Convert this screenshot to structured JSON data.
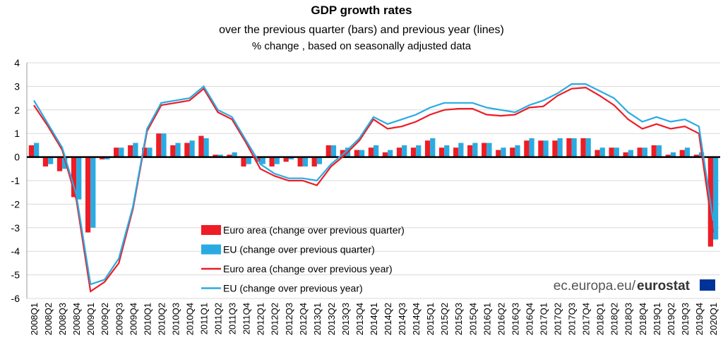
{
  "chart_data": {
    "type": "bar",
    "title": "GDP growth rates",
    "subtitle": "over the previous quarter (bars) and previous year (lines)",
    "note": "% change , based on seasonally adjusted data",
    "source": "ec.europa.eu/",
    "source_brand": "eurostat",
    "categories": [
      "2008Q1",
      "2008Q2",
      "2008Q3",
      "2008Q4",
      "2009Q1",
      "2009Q2",
      "2009Q3",
      "2009Q4",
      "2010Q1",
      "2010Q2",
      "2010Q3",
      "2010Q4",
      "2011Q1",
      "2011Q2",
      "2011Q3",
      "2011Q4",
      "2012Q1",
      "2012Q2",
      "2012Q3",
      "2012Q4",
      "2013Q1",
      "2013Q2",
      "2013Q3",
      "2013Q4",
      "2014Q1",
      "2014Q2",
      "2014Q3",
      "2014Q4",
      "2015Q1",
      "2015Q2",
      "2015Q3",
      "2015Q4",
      "2016Q1",
      "2016Q2",
      "2016Q3",
      "2016Q4",
      "2017Q1",
      "2017Q2",
      "2017Q3",
      "2017Q4",
      "2018Q1",
      "2018Q2",
      "2018Q3",
      "2018Q4",
      "2019Q1",
      "2019Q2",
      "2019Q3",
      "2019Q4",
      "2020Q1"
    ],
    "series": [
      {
        "name": "Euro area (change over previous quarter)",
        "kind": "bar",
        "color": "#ee1c25",
        "values": [
          0.5,
          -0.4,
          -0.6,
          -1.7,
          -3.2,
          -0.1,
          0.4,
          0.5,
          0.4,
          1.0,
          0.5,
          0.6,
          0.9,
          0.1,
          0.1,
          -0.4,
          -0.2,
          -0.4,
          -0.2,
          -0.4,
          -0.4,
          0.5,
          0.3,
          0.3,
          0.4,
          0.2,
          0.4,
          0.4,
          0.7,
          0.4,
          0.4,
          0.5,
          0.6,
          0.3,
          0.4,
          0.7,
          0.7,
          0.7,
          0.8,
          0.8,
          0.3,
          0.4,
          0.2,
          0.4,
          0.5,
          0.1,
          0.3,
          0.1,
          -3.8
        ]
      },
      {
        "name": "EU (change over previous quarter)",
        "kind": "bar",
        "color": "#29abe2",
        "values": [
          0.6,
          -0.3,
          -0.5,
          -1.8,
          -3.0,
          -0.1,
          0.4,
          0.6,
          0.4,
          1.0,
          0.6,
          0.7,
          0.8,
          0.1,
          0.2,
          -0.3,
          -0.3,
          -0.3,
          -0.1,
          -0.4,
          -0.3,
          0.5,
          0.4,
          0.3,
          0.5,
          0.3,
          0.5,
          0.5,
          0.8,
          0.5,
          0.6,
          0.6,
          0.6,
          0.4,
          0.5,
          0.8,
          0.7,
          0.8,
          0.8,
          0.8,
          0.4,
          0.4,
          0.3,
          0.4,
          0.5,
          0.2,
          0.4,
          0.2,
          -3.5
        ]
      },
      {
        "name": "Euro area (change over previous year)",
        "kind": "line",
        "color": "#ee1c25",
        "values": [
          2.2,
          1.3,
          0.3,
          -1.8,
          -5.7,
          -5.3,
          -4.5,
          -2.2,
          1.1,
          2.2,
          2.3,
          2.4,
          2.9,
          1.9,
          1.6,
          0.6,
          -0.5,
          -0.8,
          -1.0,
          -1.0,
          -1.2,
          -0.4,
          0.1,
          0.7,
          1.6,
          1.2,
          1.3,
          1.5,
          1.8,
          2.0,
          2.05,
          2.05,
          1.8,
          1.75,
          1.8,
          2.1,
          2.15,
          2.6,
          2.9,
          2.95,
          2.6,
          2.2,
          1.6,
          1.2,
          1.4,
          1.2,
          1.3,
          1.0,
          -3.2
        ]
      },
      {
        "name": "EU (change over previous year)",
        "kind": "line",
        "color": "#29abe2",
        "values": [
          2.4,
          1.4,
          0.4,
          -1.6,
          -5.4,
          -5.2,
          -4.3,
          -2.1,
          1.2,
          2.3,
          2.4,
          2.5,
          3.0,
          2.0,
          1.7,
          0.7,
          -0.3,
          -0.7,
          -0.9,
          -0.9,
          -1.0,
          -0.3,
          0.2,
          0.8,
          1.7,
          1.4,
          1.6,
          1.8,
          2.1,
          2.3,
          2.3,
          2.3,
          2.1,
          2.0,
          1.9,
          2.2,
          2.4,
          2.7,
          3.1,
          3.1,
          2.8,
          2.5,
          1.9,
          1.5,
          1.7,
          1.5,
          1.6,
          1.3,
          -2.7
        ]
      }
    ],
    "ylim": [
      -6,
      4
    ],
    "yticks": [
      -6,
      -5,
      -4,
      -3,
      -2,
      -1,
      0,
      1,
      2,
      3,
      4
    ],
    "grid": true
  }
}
